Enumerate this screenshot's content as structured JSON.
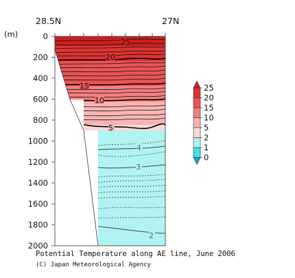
{
  "chart_data": {
    "type": "heatmap",
    "caption": "Potential Temperature along AE line, June 2006",
    "credit": "(C) Japan Meteorological Agency",
    "x_tick_labels": [
      "28.5N",
      "27N"
    ],
    "y_unit": "(m)",
    "y_ticks": [
      0,
      200,
      400,
      600,
      800,
      1000,
      1200,
      1400,
      1600,
      1800,
      2000
    ],
    "ylim": [
      0,
      2000
    ],
    "y_inverted": true,
    "contours": [
      {
        "level": 25,
        "depth_m": 40,
        "label": "25"
      },
      {
        "level": 20,
        "depth_m": 175,
        "label": "20"
      },
      {
        "level": 15,
        "depth_m": 470,
        "label": "15"
      },
      {
        "level": 10,
        "depth_m": 620,
        "label": "10"
      },
      {
        "level": 5,
        "depth_m": 870,
        "label": "5"
      },
      {
        "level": 4,
        "depth_m": 1060,
        "label": "4"
      },
      {
        "level": 3,
        "depth_m": 1270,
        "label": "3"
      },
      {
        "level": 2,
        "depth_m": 1900,
        "label": "2"
      }
    ],
    "colorbar": {
      "tick_labels": [
        "25",
        "20",
        "15",
        "10",
        "5",
        "2",
        "1",
        "0"
      ],
      "bins": [
        {
          "range": "above 25",
          "color": "#cc1f1f"
        },
        {
          "range": "20-25",
          "color": "#e03232"
        },
        {
          "range": "15-20",
          "color": "#ea5454"
        },
        {
          "range": "10-15",
          "color": "#f28080"
        },
        {
          "range": "5-10",
          "color": "#f8b4b4"
        },
        {
          "range": "2-5",
          "color": "#fbdada"
        },
        {
          "range": "1-2",
          "color": "#b0f3f3"
        },
        {
          "range": "0-1",
          "color": "#40e2e2"
        },
        {
          "range": "below 0",
          "color": "#1a9fe0"
        }
      ]
    }
  }
}
